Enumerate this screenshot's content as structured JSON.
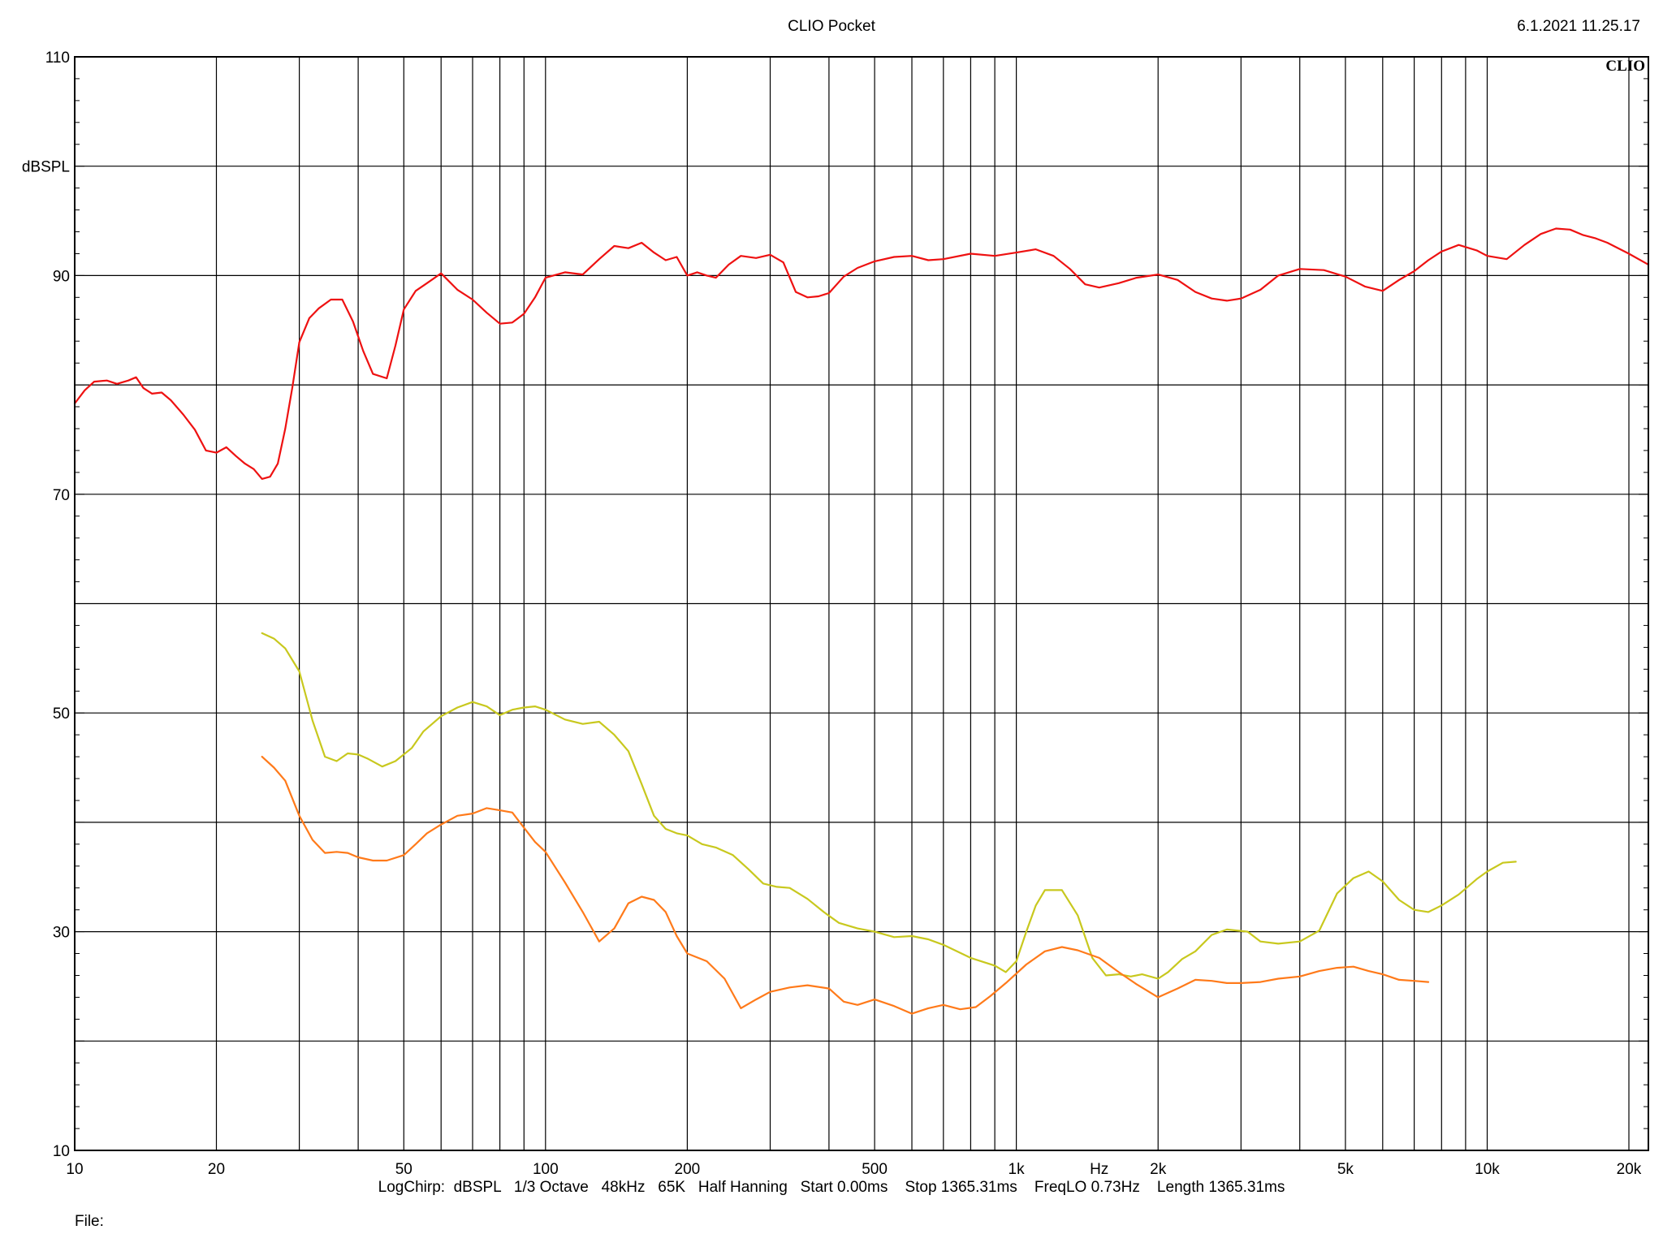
{
  "header": {
    "title": "CLIO Pocket",
    "timestamp": "6.1.2021 11.25.17"
  },
  "footer": {
    "settings": "LogChirp:  dBSPL   1/3 Octave   48kHz   65K   Half Hanning   Start 0.00ms    Stop 1365.31ms    FreqLO 0.73Hz    Length 1365.31ms",
    "file_label": "File:"
  },
  "colors": {
    "background": "#ffffff",
    "grid": "#000000",
    "series_red": "#ee1111",
    "series_yellow": "#c8c81e",
    "series_orange": "#ff7a1a"
  },
  "chart_data": {
    "type": "line",
    "title": "CLIO Pocket",
    "xlabel": "Hz",
    "ylabel": "dBSPL",
    "xscale": "log",
    "xlim": [
      10,
      22000
    ],
    "ylim": [
      10,
      110
    ],
    "grid": true,
    "watermark": "CLIO",
    "x_ticks": [
      {
        "value": 10,
        "label": "10"
      },
      {
        "value": 20,
        "label": "20"
      },
      {
        "value": 50,
        "label": "50"
      },
      {
        "value": 100,
        "label": "100"
      },
      {
        "value": 200,
        "label": "200"
      },
      {
        "value": 500,
        "label": "500"
      },
      {
        "value": 1000,
        "label": "1k"
      },
      {
        "value": 2000,
        "label": "2k"
      },
      {
        "value": 5000,
        "label": "5k"
      },
      {
        "value": 10000,
        "label": "10k"
      },
      {
        "value": 20000,
        "label": "20k"
      }
    ],
    "x_gridlines": [
      10,
      20,
      30,
      40,
      50,
      60,
      70,
      80,
      90,
      100,
      200,
      300,
      400,
      500,
      600,
      700,
      800,
      900,
      1000,
      2000,
      3000,
      4000,
      5000,
      6000,
      7000,
      8000,
      9000,
      10000,
      20000
    ],
    "y_ticks": [
      {
        "value": 110,
        "label": "110"
      },
      {
        "value": 90,
        "label": "90"
      },
      {
        "value": 70,
        "label": "70"
      },
      {
        "value": 50,
        "label": "50"
      },
      {
        "value": 30,
        "label": "30"
      },
      {
        "value": 10,
        "label": "10"
      }
    ],
    "y_gridlines": [
      10,
      20,
      30,
      40,
      50,
      60,
      70,
      80,
      90,
      100,
      110
    ],
    "series": [
      {
        "color": "#ee1111",
        "points": [
          [
            10,
            78.3
          ],
          [
            10.5,
            79.5
          ],
          [
            11,
            80.3
          ],
          [
            11.7,
            80.4
          ],
          [
            12.3,
            80.1
          ],
          [
            13,
            80.4
          ],
          [
            13.5,
            80.7
          ],
          [
            14,
            79.7
          ],
          [
            14.6,
            79.2
          ],
          [
            15.3,
            79.3
          ],
          [
            16,
            78.6
          ],
          [
            17,
            77.3
          ],
          [
            18,
            75.9
          ],
          [
            19,
            74.0
          ],
          [
            20,
            73.8
          ],
          [
            21,
            74.3
          ],
          [
            22,
            73.5
          ],
          [
            23,
            72.8
          ],
          [
            24,
            72.3
          ],
          [
            25,
            71.4
          ],
          [
            26,
            71.6
          ],
          [
            27,
            72.8
          ],
          [
            28,
            76.0
          ],
          [
            29,
            79.8
          ],
          [
            30,
            83.9
          ],
          [
            31.5,
            86.1
          ],
          [
            33,
            87.0
          ],
          [
            35,
            87.8
          ],
          [
            37,
            87.8
          ],
          [
            39,
            85.8
          ],
          [
            41,
            83.1
          ],
          [
            43,
            81.0
          ],
          [
            46,
            80.6
          ],
          [
            48,
            83.6
          ],
          [
            50,
            86.9
          ],
          [
            53,
            88.6
          ],
          [
            56,
            89.3
          ],
          [
            60,
            90.2
          ],
          [
            65,
            88.7
          ],
          [
            70,
            87.8
          ],
          [
            75,
            86.6
          ],
          [
            80,
            85.6
          ],
          [
            85,
            85.7
          ],
          [
            90,
            86.5
          ],
          [
            95,
            88.0
          ],
          [
            100,
            89.8
          ],
          [
            110,
            90.3
          ],
          [
            120,
            90.1
          ],
          [
            130,
            91.5
          ],
          [
            140,
            92.7
          ],
          [
            150,
            92.5
          ],
          [
            160,
            93.0
          ],
          [
            170,
            92.1
          ],
          [
            180,
            91.4
          ],
          [
            190,
            91.7
          ],
          [
            200,
            90.0
          ],
          [
            210,
            90.3
          ],
          [
            220,
            90.0
          ],
          [
            230,
            89.8
          ],
          [
            245,
            91.0
          ],
          [
            260,
            91.8
          ],
          [
            280,
            91.6
          ],
          [
            300,
            91.9
          ],
          [
            320,
            91.2
          ],
          [
            340,
            88.5
          ],
          [
            360,
            88.0
          ],
          [
            380,
            88.1
          ],
          [
            400,
            88.4
          ],
          [
            430,
            89.9
          ],
          [
            460,
            90.7
          ],
          [
            500,
            91.3
          ],
          [
            550,
            91.7
          ],
          [
            600,
            91.8
          ],
          [
            650,
            91.4
          ],
          [
            700,
            91.5
          ],
          [
            800,
            92.0
          ],
          [
            900,
            91.8
          ],
          [
            1000,
            92.1
          ],
          [
            1100,
            92.4
          ],
          [
            1200,
            91.8
          ],
          [
            1300,
            90.6
          ],
          [
            1400,
            89.2
          ],
          [
            1500,
            88.9
          ],
          [
            1650,
            89.3
          ],
          [
            1800,
            89.8
          ],
          [
            2000,
            90.1
          ],
          [
            2200,
            89.6
          ],
          [
            2400,
            88.5
          ],
          [
            2600,
            87.9
          ],
          [
            2800,
            87.7
          ],
          [
            3000,
            87.9
          ],
          [
            3300,
            88.7
          ],
          [
            3600,
            90.0
          ],
          [
            4000,
            90.6
          ],
          [
            4500,
            90.5
          ],
          [
            5000,
            89.9
          ],
          [
            5500,
            89.0
          ],
          [
            6000,
            88.6
          ],
          [
            6500,
            89.6
          ],
          [
            7000,
            90.4
          ],
          [
            7500,
            91.4
          ],
          [
            8000,
            92.2
          ],
          [
            8700,
            92.8
          ],
          [
            9500,
            92.3
          ],
          [
            10000,
            91.8
          ],
          [
            11000,
            91.5
          ],
          [
            12000,
            92.8
          ],
          [
            13000,
            93.8
          ],
          [
            14000,
            94.3
          ],
          [
            15000,
            94.2
          ],
          [
            16000,
            93.7
          ],
          [
            17000,
            93.4
          ],
          [
            18000,
            93.0
          ],
          [
            20000,
            92.0
          ],
          [
            22000,
            91.0
          ]
        ]
      },
      {
        "color": "#c8c81e",
        "points": [
          [
            25,
            57.3
          ],
          [
            26.5,
            56.8
          ],
          [
            28,
            55.9
          ],
          [
            30,
            53.8
          ],
          [
            32,
            49.3
          ],
          [
            34,
            46.0
          ],
          [
            36,
            45.6
          ],
          [
            38,
            46.3
          ],
          [
            40,
            46.2
          ],
          [
            42,
            45.8
          ],
          [
            45,
            45.1
          ],
          [
            48,
            45.6
          ],
          [
            52,
            46.8
          ],
          [
            55,
            48.3
          ],
          [
            60,
            49.7
          ],
          [
            65,
            50.5
          ],
          [
            70,
            51.0
          ],
          [
            75,
            50.6
          ],
          [
            80,
            49.8
          ],
          [
            85,
            50.3
          ],
          [
            90,
            50.5
          ],
          [
            95,
            50.6
          ],
          [
            100,
            50.3
          ],
          [
            110,
            49.4
          ],
          [
            120,
            49.0
          ],
          [
            130,
            49.2
          ],
          [
            140,
            48.0
          ],
          [
            150,
            46.5
          ],
          [
            160,
            43.5
          ],
          [
            170,
            40.6
          ],
          [
            180,
            39.4
          ],
          [
            190,
            39.0
          ],
          [
            200,
            38.8
          ],
          [
            215,
            38.0
          ],
          [
            230,
            37.7
          ],
          [
            250,
            37.0
          ],
          [
            270,
            35.7
          ],
          [
            290,
            34.4
          ],
          [
            310,
            34.1
          ],
          [
            330,
            34.0
          ],
          [
            360,
            33.0
          ],
          [
            390,
            31.8
          ],
          [
            420,
            30.8
          ],
          [
            460,
            30.3
          ],
          [
            500,
            30.0
          ],
          [
            550,
            29.5
          ],
          [
            600,
            29.6
          ],
          [
            650,
            29.3
          ],
          [
            700,
            28.8
          ],
          [
            800,
            27.6
          ],
          [
            900,
            26.9
          ],
          [
            950,
            26.3
          ],
          [
            1000,
            27.3
          ],
          [
            1050,
            30.0
          ],
          [
            1100,
            32.4
          ],
          [
            1150,
            33.8
          ],
          [
            1250,
            33.8
          ],
          [
            1350,
            31.5
          ],
          [
            1450,
            27.6
          ],
          [
            1550,
            26.0
          ],
          [
            1650,
            26.1
          ],
          [
            1750,
            25.9
          ],
          [
            1850,
            26.1
          ],
          [
            2000,
            25.7
          ],
          [
            2100,
            26.3
          ],
          [
            2250,
            27.5
          ],
          [
            2400,
            28.2
          ],
          [
            2600,
            29.7
          ],
          [
            2800,
            30.2
          ],
          [
            3100,
            30.0
          ],
          [
            3300,
            29.1
          ],
          [
            3600,
            28.9
          ],
          [
            4000,
            29.1
          ],
          [
            4400,
            30.1
          ],
          [
            4800,
            33.5
          ],
          [
            5200,
            34.9
          ],
          [
            5600,
            35.5
          ],
          [
            6000,
            34.6
          ],
          [
            6500,
            32.9
          ],
          [
            7000,
            32.0
          ],
          [
            7500,
            31.8
          ],
          [
            8000,
            32.4
          ],
          [
            8700,
            33.4
          ],
          [
            9500,
            34.8
          ],
          [
            10000,
            35.5
          ],
          [
            10800,
            36.3
          ],
          [
            11500,
            36.4
          ]
        ]
      },
      {
        "color": "#ff7a1a",
        "points": [
          [
            25,
            46.0
          ],
          [
            26.5,
            45.0
          ],
          [
            28,
            43.8
          ],
          [
            30,
            40.6
          ],
          [
            32,
            38.4
          ],
          [
            34,
            37.2
          ],
          [
            36,
            37.3
          ],
          [
            38,
            37.2
          ],
          [
            40,
            36.8
          ],
          [
            43,
            36.5
          ],
          [
            46,
            36.5
          ],
          [
            50,
            37.0
          ],
          [
            53,
            38.0
          ],
          [
            56,
            39.0
          ],
          [
            60,
            39.8
          ],
          [
            65,
            40.6
          ],
          [
            70,
            40.8
          ],
          [
            75,
            41.3
          ],
          [
            80,
            41.1
          ],
          [
            85,
            40.9
          ],
          [
            90,
            39.5
          ],
          [
            95,
            38.2
          ],
          [
            100,
            37.3
          ],
          [
            110,
            34.5
          ],
          [
            120,
            31.8
          ],
          [
            130,
            29.1
          ],
          [
            140,
            30.3
          ],
          [
            150,
            32.6
          ],
          [
            160,
            33.2
          ],
          [
            170,
            32.9
          ],
          [
            180,
            31.8
          ],
          [
            190,
            29.6
          ],
          [
            200,
            28.0
          ],
          [
            220,
            27.3
          ],
          [
            240,
            25.7
          ],
          [
            260,
            23.0
          ],
          [
            280,
            23.8
          ],
          [
            300,
            24.5
          ],
          [
            330,
            24.9
          ],
          [
            360,
            25.1
          ],
          [
            400,
            24.8
          ],
          [
            430,
            23.6
          ],
          [
            460,
            23.3
          ],
          [
            500,
            23.8
          ],
          [
            550,
            23.2
          ],
          [
            600,
            22.5
          ],
          [
            650,
            23.0
          ],
          [
            700,
            23.3
          ],
          [
            760,
            22.9
          ],
          [
            820,
            23.1
          ],
          [
            880,
            24.1
          ],
          [
            950,
            25.3
          ],
          [
            1050,
            27.0
          ],
          [
            1150,
            28.2
          ],
          [
            1250,
            28.6
          ],
          [
            1350,
            28.3
          ],
          [
            1500,
            27.6
          ],
          [
            1650,
            26.3
          ],
          [
            1800,
            25.2
          ],
          [
            2000,
            24.0
          ],
          [
            2200,
            24.8
          ],
          [
            2400,
            25.6
          ],
          [
            2600,
            25.5
          ],
          [
            2800,
            25.3
          ],
          [
            3000,
            25.3
          ],
          [
            3300,
            25.4
          ],
          [
            3600,
            25.7
          ],
          [
            4000,
            25.9
          ],
          [
            4400,
            26.4
          ],
          [
            4800,
            26.7
          ],
          [
            5200,
            26.8
          ],
          [
            5600,
            26.4
          ],
          [
            6000,
            26.1
          ],
          [
            6500,
            25.6
          ],
          [
            7000,
            25.5
          ],
          [
            7500,
            25.4
          ]
        ]
      }
    ]
  }
}
